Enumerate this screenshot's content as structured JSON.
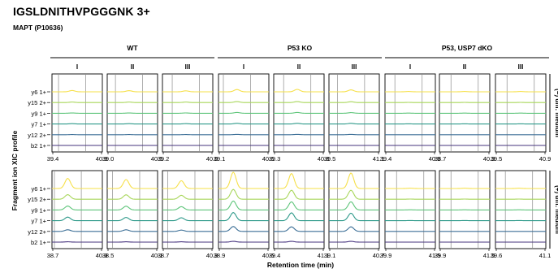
{
  "title": "IGSLDNITHVPGGGNK 3+",
  "subtitle": "MAPT (P10636)",
  "chart_data": {
    "type": "line",
    "ylabel": "Fragment ion XIC profile",
    "xlabel": "Retention time (min)",
    "groups": [
      "WT",
      "P53 KO",
      "P53, USP7 dKO"
    ],
    "replicates": [
      "I",
      "II",
      "III"
    ],
    "row_labels": [
      "(−) diff. medium",
      "(+) diff. medium"
    ],
    "fragment_ions": [
      "y6 1+",
      "y15 2+",
      "y9 1+",
      "y7 1+",
      "y12 2+",
      "b2 1+"
    ],
    "ion_colors": [
      "#f6e04a",
      "#a8d65a",
      "#5ec57a",
      "#2f9a8a",
      "#3b6e96",
      "#46337e"
    ],
    "panels": [
      {
        "row": 0,
        "group": 0,
        "replicate": 0,
        "xlim": [
          39.4,
          40.9
        ],
        "xticks": [
          "39.4",
          "40.9"
        ],
        "peak_rt": 40.0,
        "peak_heights": [
          0.08,
          0.03,
          0.02,
          0.02,
          0.01,
          0
        ]
      },
      {
        "row": 0,
        "group": 0,
        "replicate": 1,
        "xlim": [
          39.0,
          40.5
        ],
        "xticks": [
          "39.0",
          "40.5"
        ],
        "peak_rt": 39.65,
        "peak_heights": [
          0.07,
          0.03,
          0.02,
          0.02,
          0.01,
          0
        ]
      },
      {
        "row": 0,
        "group": 0,
        "replicate": 2,
        "xlim": [
          39.2,
          40.6
        ],
        "xticks": [
          "39.2",
          "40.6"
        ],
        "peak_rt": 39.85,
        "peak_heights": [
          0.06,
          0.03,
          0.02,
          0.02,
          0.01,
          0
        ]
      },
      {
        "row": 0,
        "group": 1,
        "replicate": 0,
        "xlim": [
          39.1,
          40.6
        ],
        "xticks": [
          "39.1",
          "40.6"
        ],
        "peak_rt": 39.65,
        "peak_heights": [
          0.14,
          0.06,
          0.05,
          0.04,
          0.02,
          0
        ]
      },
      {
        "row": 0,
        "group": 1,
        "replicate": 1,
        "xlim": [
          39.3,
          40.8
        ],
        "xticks": [
          "39.3",
          "40.8"
        ],
        "peak_rt": 40.0,
        "peak_heights": [
          0.15,
          0.06,
          0.05,
          0.04,
          0.02,
          0
        ]
      },
      {
        "row": 0,
        "group": 1,
        "replicate": 2,
        "xlim": [
          39.5,
          41.1
        ],
        "xticks": [
          "39.5",
          "41.1"
        ],
        "peak_rt": 40.2,
        "peak_heights": [
          0.12,
          0.05,
          0.04,
          0.04,
          0.02,
          0
        ]
      },
      {
        "row": 0,
        "group": 2,
        "replicate": 0,
        "xlim": [
          39.4,
          40.9
        ],
        "xticks": [
          "39.4",
          "40.9"
        ],
        "peak_rt": 40.1,
        "peak_heights": [
          0.02,
          0.01,
          0.01,
          0.01,
          0,
          0
        ]
      },
      {
        "row": 0,
        "group": 2,
        "replicate": 1,
        "xlim": [
          38.7,
          40.3
        ],
        "xticks": [
          "38.7",
          "40.3"
        ],
        "peak_rt": 39.5,
        "peak_heights": [
          0.02,
          0.01,
          0.01,
          0.01,
          0,
          0
        ]
      },
      {
        "row": 0,
        "group": 2,
        "replicate": 2,
        "xlim": [
          39.5,
          40.9
        ],
        "xticks": [
          "39.5",
          "40.9"
        ],
        "peak_rt": 40.2,
        "peak_heights": [
          0.02,
          0.01,
          0.01,
          0.01,
          0,
          0
        ]
      },
      {
        "row": 1,
        "group": 0,
        "replicate": 0,
        "xlim": [
          38.7,
          40.3
        ],
        "xticks": [
          "38.7",
          "40.3"
        ],
        "peak_rt": 39.2,
        "peak_heights": [
          0.62,
          0.28,
          0.24,
          0.22,
          0.1,
          0.02
        ]
      },
      {
        "row": 1,
        "group": 0,
        "replicate": 1,
        "xlim": [
          38.5,
          40.1
        ],
        "xticks": [
          "38.5",
          "40.1"
        ],
        "peak_rt": 39.1,
        "peak_heights": [
          0.55,
          0.27,
          0.23,
          0.2,
          0.1,
          0.02
        ]
      },
      {
        "row": 1,
        "group": 0,
        "replicate": 2,
        "xlim": [
          38.7,
          40.3
        ],
        "xticks": [
          "38.7",
          "40.3"
        ],
        "peak_rt": 39.3,
        "peak_heights": [
          0.48,
          0.24,
          0.2,
          0.18,
          0.08,
          0.02
        ]
      },
      {
        "row": 1,
        "group": 1,
        "replicate": 0,
        "xlim": [
          38.9,
          40.6
        ],
        "xticks": [
          "38.9",
          "40.6"
        ],
        "peak_rt": 39.4,
        "peak_heights": [
          1.0,
          0.6,
          0.55,
          0.5,
          0.3,
          0.05
        ]
      },
      {
        "row": 1,
        "group": 1,
        "replicate": 1,
        "xlim": [
          39.4,
          41.1
        ],
        "xticks": [
          "39.4",
          "41.1"
        ],
        "peak_rt": 40.0,
        "peak_heights": [
          0.92,
          0.55,
          0.5,
          0.48,
          0.28,
          0.05
        ]
      },
      {
        "row": 1,
        "group": 1,
        "replicate": 2,
        "xlim": [
          39.1,
          40.7
        ],
        "xticks": [
          "39.1",
          "40.7"
        ],
        "peak_rt": 39.8,
        "peak_heights": [
          0.95,
          0.55,
          0.5,
          0.46,
          0.28,
          0.05
        ]
      },
      {
        "row": 1,
        "group": 2,
        "replicate": 0,
        "xlim": [
          39.9,
          41.5
        ],
        "xticks": [
          "39.9",
          "41.5"
        ],
        "peak_rt": 40.7,
        "peak_heights": [
          0.02,
          0.01,
          0.01,
          0.01,
          0,
          0
        ]
      },
      {
        "row": 1,
        "group": 2,
        "replicate": 1,
        "xlim": [
          39.9,
          41.5
        ],
        "xticks": [
          "39.9",
          "41.5"
        ],
        "peak_rt": 40.7,
        "peak_heights": [
          0.02,
          0.01,
          0.01,
          0.01,
          0,
          0
        ]
      },
      {
        "row": 1,
        "group": 2,
        "replicate": 2,
        "xlim": [
          39.6,
          41.1
        ],
        "xticks": [
          "39.6",
          "41.1"
        ],
        "peak_rt": 40.3,
        "peak_heights": [
          0.02,
          0.01,
          0.01,
          0.01,
          0,
          0
        ]
      }
    ]
  }
}
